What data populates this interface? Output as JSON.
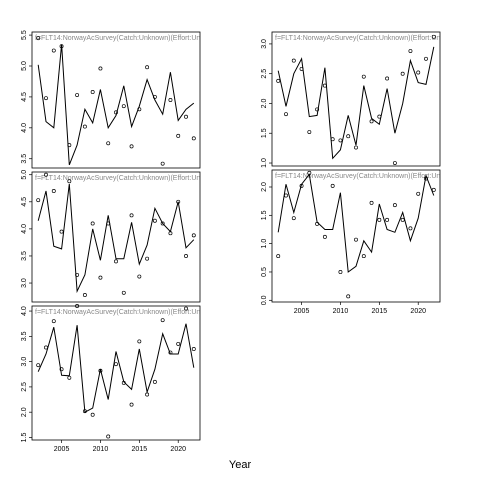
{
  "chart_data": {
    "type": "line",
    "xlabel": "Year",
    "panels": [
      {
        "id": "p1",
        "strip": "f=FLT14:NorwayAcSurvey(Catch:Unknown)(Effort:Un",
        "yticks": [
          3.5,
          4.0,
          4.5,
          5.0,
          5.5
        ],
        "ylim": [
          3.35,
          5.55
        ],
        "show_x_ticks": false,
        "fitted": {
          "x": [
            2002,
            2003,
            2004,
            2005,
            2006,
            2007,
            2008,
            2009,
            2010,
            2011,
            2012,
            2013,
            2014,
            2015,
            2016,
            2017,
            2018,
            2019,
            2020,
            2021,
            2022
          ],
          "y": [
            5.02,
            4.1,
            4.0,
            5.35,
            3.4,
            3.72,
            4.3,
            4.08,
            4.62,
            4.0,
            4.2,
            4.68,
            4.02,
            4.35,
            4.78,
            4.45,
            4.22,
            4.9,
            4.12,
            4.3,
            4.4
          ]
        },
        "observed": {
          "x": [
            2002,
            2003,
            2004,
            2005,
            2006,
            2007,
            2008,
            2009,
            2010,
            2011,
            2012,
            2013,
            2014,
            2015,
            2016,
            2017,
            2018,
            2019,
            2020,
            2021,
            2022
          ],
          "y": [
            5.45,
            4.48,
            5.25,
            5.32,
            3.72,
            4.53,
            4.02,
            4.58,
            4.96,
            3.75,
            4.25,
            4.35,
            3.7,
            4.3,
            4.98,
            4.5,
            3.42,
            4.45,
            3.87,
            4.18,
            3.83
          ]
        }
      },
      {
        "id": "p2",
        "strip": "f=FLT14:NorwayAcSurvey(Catch:Unknown)(Effort:Un",
        "yticks": [
          3.0,
          3.5,
          4.0,
          4.5,
          5.0
        ],
        "ylim": [
          2.65,
          5.05
        ],
        "show_x_ticks": false,
        "fitted": {
          "x": [
            2002,
            2003,
            2004,
            2005,
            2006,
            2007,
            2008,
            2009,
            2010,
            2011,
            2012,
            2013,
            2014,
            2015,
            2016,
            2017,
            2018,
            2019,
            2020,
            2021,
            2022
          ],
          "y": [
            4.15,
            4.7,
            3.68,
            3.63,
            4.83,
            2.85,
            3.15,
            4.0,
            3.42,
            4.25,
            3.45,
            3.45,
            4.12,
            3.35,
            3.7,
            4.38,
            4.1,
            3.95,
            4.5,
            3.65,
            3.8
          ]
        },
        "observed": {
          "x": [
            2002,
            2003,
            2004,
            2005,
            2006,
            2007,
            2008,
            2009,
            2010,
            2011,
            2012,
            2013,
            2014,
            2015,
            2016,
            2017,
            2018,
            2019,
            2020,
            2021,
            2022
          ],
          "y": [
            4.53,
            5.0,
            4.7,
            3.95,
            4.88,
            3.15,
            2.78,
            4.1,
            3.1,
            4.1,
            3.4,
            2.82,
            4.25,
            3.12,
            3.45,
            4.15,
            4.1,
            3.92,
            4.5,
            3.5,
            3.88
          ]
        }
      },
      {
        "id": "p3",
        "strip": "f=FLT14:NorwayAcSurvey(Catch:Unknown)(Effort:Un",
        "yticks": [
          1.5,
          2.0,
          2.5,
          3.0,
          3.5,
          4.0
        ],
        "ylim": [
          1.45,
          4.1
        ],
        "show_x_ticks": true,
        "xticks": [
          2005,
          2010,
          2015,
          2020
        ],
        "xlim": [
          2001.2,
          2022.8
        ],
        "fitted": {
          "x": [
            2002,
            2003,
            2004,
            2005,
            2006,
            2007,
            2008,
            2009,
            2010,
            2011,
            2012,
            2013,
            2014,
            2015,
            2016,
            2017,
            2018,
            2019,
            2020,
            2021,
            2022
          ],
          "y": [
            2.8,
            3.15,
            3.68,
            2.73,
            2.72,
            3.72,
            2.0,
            2.08,
            2.85,
            2.25,
            3.2,
            2.6,
            2.45,
            3.25,
            2.4,
            2.85,
            3.55,
            3.15,
            3.15,
            3.75,
            2.88
          ]
        },
        "observed": {
          "x": [
            2002,
            2003,
            2004,
            2005,
            2006,
            2007,
            2008,
            2009,
            2010,
            2011,
            2012,
            2013,
            2014,
            2015,
            2016,
            2017,
            2018,
            2019,
            2020,
            2021,
            2022
          ],
          "y": [
            2.93,
            3.28,
            3.8,
            2.85,
            2.68,
            4.1,
            2.02,
            1.95,
            2.82,
            1.52,
            2.95,
            2.58,
            2.15,
            3.4,
            2.35,
            2.6,
            3.82,
            3.18,
            3.35,
            4.05,
            3.25
          ]
        }
      },
      {
        "id": "p4",
        "strip": "f=FLT14:NorwayAcSurvey(Catch:Unknown)(Effort:Un",
        "yticks": [
          1.0,
          1.5,
          2.0,
          2.5,
          3.0
        ],
        "ylim": [
          0.95,
          3.2
        ],
        "show_x_ticks": false,
        "fitted": {
          "x": [
            2002,
            2003,
            2004,
            2005,
            2006,
            2007,
            2008,
            2009,
            2010,
            2011,
            2012,
            2013,
            2014,
            2015,
            2016,
            2017,
            2018,
            2019,
            2020,
            2021,
            2022
          ],
          "y": [
            2.55,
            1.95,
            2.5,
            2.75,
            1.78,
            1.8,
            2.6,
            1.08,
            1.22,
            1.8,
            1.3,
            2.3,
            1.75,
            1.65,
            2.25,
            1.5,
            2.0,
            2.72,
            2.35,
            2.32,
            2.95
          ]
        },
        "observed": {
          "x": [
            2002,
            2003,
            2004,
            2005,
            2006,
            2007,
            2008,
            2009,
            2010,
            2011,
            2012,
            2013,
            2014,
            2015,
            2016,
            2017,
            2018,
            2019,
            2020,
            2021,
            2022
          ],
          "y": [
            2.38,
            1.82,
            2.72,
            2.58,
            1.52,
            1.9,
            2.3,
            1.4,
            1.38,
            1.45,
            1.26,
            2.45,
            1.7,
            1.78,
            2.42,
            1.0,
            2.5,
            2.88,
            2.52,
            2.75,
            3.12
          ]
        }
      },
      {
        "id": "p5",
        "strip": "f=FLT14:NorwayAcSurvey(Catch:Unknown)(Effort:Un",
        "yticks": [
          0.0,
          0.5,
          1.0,
          1.5,
          2.0
        ],
        "ylim": [
          -0.03,
          2.3
        ],
        "show_x_ticks": true,
        "xticks": [
          2005,
          2010,
          2015,
          2020
        ],
        "xlim": [
          2001.2,
          2022.8
        ],
        "fitted": {
          "x": [
            2002,
            2003,
            2004,
            2005,
            2006,
            2007,
            2008,
            2009,
            2010,
            2011,
            2012,
            2013,
            2014,
            2015,
            2016,
            2017,
            2018,
            2019,
            2020,
            2021,
            2022
          ],
          "y": [
            1.2,
            2.05,
            1.55,
            2.05,
            2.22,
            1.38,
            1.25,
            1.25,
            1.9,
            0.5,
            0.6,
            1.05,
            0.85,
            1.7,
            1.25,
            1.2,
            1.55,
            1.05,
            1.45,
            2.2,
            1.85
          ]
        },
        "observed": {
          "x": [
            2002,
            2003,
            2004,
            2005,
            2006,
            2007,
            2008,
            2009,
            2010,
            2011,
            2012,
            2013,
            2014,
            2015,
            2016,
            2017,
            2018,
            2019,
            2020,
            2021,
            2022
          ],
          "y": [
            0.78,
            1.85,
            1.45,
            2.02,
            2.25,
            1.35,
            1.12,
            2.02,
            0.5,
            0.07,
            1.07,
            0.78,
            1.72,
            1.42,
            1.42,
            1.68,
            1.42,
            1.27,
            1.88,
            2.15,
            1.95
          ]
        }
      }
    ]
  }
}
